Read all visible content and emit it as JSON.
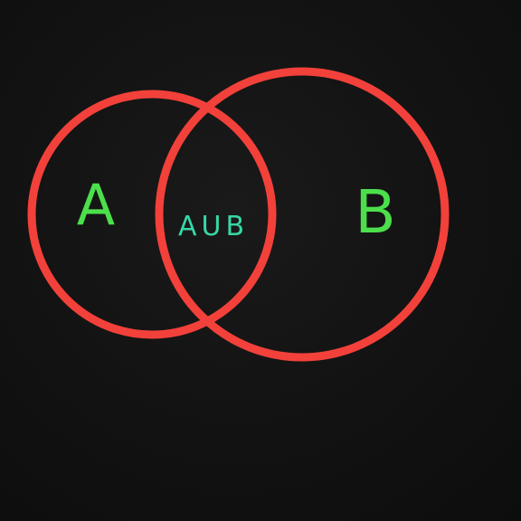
{
  "diagram": {
    "type": "venn",
    "background_color": "#111111",
    "circle_color": "#f2413a",
    "sets": [
      {
        "id": "A",
        "label": "A",
        "label_color": "#4be04b"
      },
      {
        "id": "B",
        "label": "B",
        "label_color": "#4be04b"
      }
    ],
    "intersection": {
      "label": "AUB",
      "label_color": "#37d7a6"
    }
  }
}
